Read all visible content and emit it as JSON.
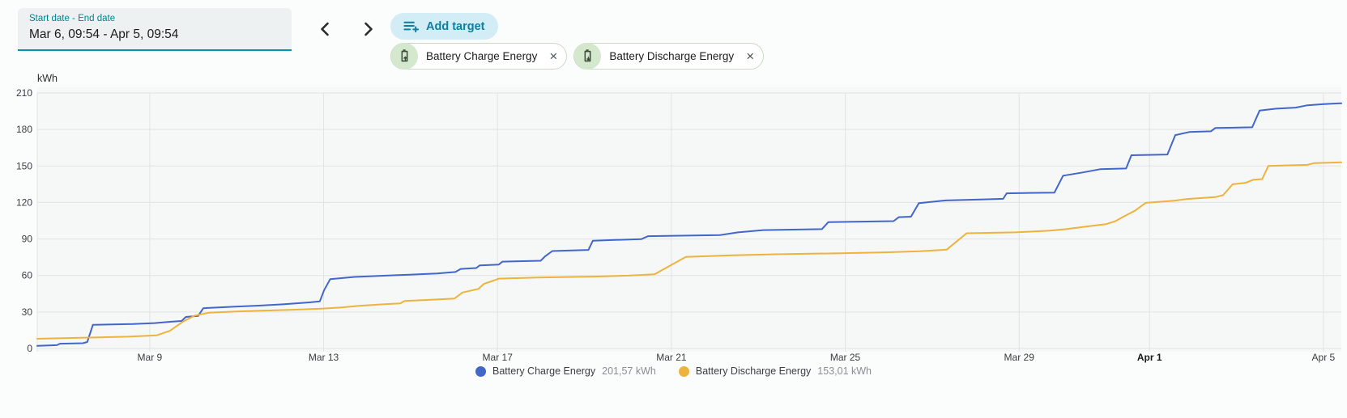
{
  "header": {
    "date_range": {
      "label": "Start date - End date",
      "value": "Mar 6, 09:54 - Apr 5, 09:54"
    },
    "add_target_label": "Add target",
    "chips": [
      {
        "label": "Battery Charge Energy",
        "icon": "battery-plus-icon",
        "close": "×"
      },
      {
        "label": "Battery Discharge Energy",
        "icon": "battery-minus-icon",
        "close": "×"
      }
    ]
  },
  "chart_data": {
    "type": "line",
    "title": "",
    "ylabel": "kWh",
    "xlabel": "",
    "ylim": [
      0,
      210
    ],
    "yticks": [
      0,
      30,
      60,
      90,
      120,
      150,
      180,
      210
    ],
    "grid": true,
    "legend_position": "bottom",
    "x_start": "Mar 6, 09:54",
    "x_end": "Apr 5, 09:54",
    "x_domain_days": 30,
    "xticks": [
      {
        "day": 2.588,
        "label": "Mar 9",
        "bold": false
      },
      {
        "day": 6.588,
        "label": "Mar 13",
        "bold": false
      },
      {
        "day": 10.588,
        "label": "Mar 17",
        "bold": false
      },
      {
        "day": 14.588,
        "label": "Mar 21",
        "bold": false
      },
      {
        "day": 18.588,
        "label": "Mar 25",
        "bold": false
      },
      {
        "day": 22.588,
        "label": "Mar 29",
        "bold": false
      },
      {
        "day": 25.588,
        "label": "Apr 1",
        "bold": true
      },
      {
        "day": 29.588,
        "label": "Apr 5",
        "bold": false
      }
    ],
    "series": [
      {
        "name": "Battery Charge Energy",
        "final_label": "201,57 kWh",
        "final_value": 201.57,
        "color": "#4266c9",
        "points": [
          [
            0,
            2.2
          ],
          [
            0.45,
            2.7
          ],
          [
            0.52,
            3.9
          ],
          [
            1.05,
            4.3
          ],
          [
            1.15,
            5.3
          ],
          [
            1.28,
            19.4
          ],
          [
            2.2,
            20.1
          ],
          [
            2.7,
            20.9
          ],
          [
            3.05,
            21.9
          ],
          [
            3.32,
            22.6
          ],
          [
            3.42,
            25.9
          ],
          [
            3.7,
            26.7
          ],
          [
            3.82,
            33.1
          ],
          [
            4.5,
            34.3
          ],
          [
            5.1,
            35.2
          ],
          [
            5.65,
            36.3
          ],
          [
            6.2,
            37.7
          ],
          [
            6.5,
            38.7
          ],
          [
            6.6,
            48
          ],
          [
            6.74,
            57
          ],
          [
            7.3,
            58.8
          ],
          [
            8.3,
            60.3
          ],
          [
            9.2,
            61.6
          ],
          [
            9.62,
            62.9
          ],
          [
            9.74,
            65.4
          ],
          [
            10.1,
            66.1
          ],
          [
            10.18,
            68.3
          ],
          [
            10.62,
            69
          ],
          [
            10.7,
            71.4
          ],
          [
            11.58,
            72.1
          ],
          [
            11.68,
            75.6
          ],
          [
            11.85,
            80.1
          ],
          [
            12.68,
            81
          ],
          [
            12.78,
            88.6
          ],
          [
            13.9,
            89.9
          ],
          [
            14.05,
            92.3
          ],
          [
            15.7,
            93.2
          ],
          [
            16.12,
            95.4
          ],
          [
            16.7,
            97.3
          ],
          [
            18.05,
            98.1
          ],
          [
            18.2,
            103.9
          ],
          [
            19.7,
            104.7
          ],
          [
            19.82,
            107.9
          ],
          [
            20.1,
            108.3
          ],
          [
            20.28,
            119.4
          ],
          [
            20.9,
            121.7
          ],
          [
            21.7,
            122.4
          ],
          [
            22.22,
            123
          ],
          [
            22.3,
            127.5
          ],
          [
            23.4,
            128.1
          ],
          [
            23.6,
            142
          ],
          [
            24.05,
            144.7
          ],
          [
            24.45,
            147.3
          ],
          [
            25.05,
            147.9
          ],
          [
            25.17,
            158.8
          ],
          [
            26.0,
            159.4
          ],
          [
            26.18,
            175.4
          ],
          [
            26.5,
            177.9
          ],
          [
            27.0,
            178.5
          ],
          [
            27.1,
            181.2
          ],
          [
            27.95,
            181.8
          ],
          [
            28.12,
            195.6
          ],
          [
            28.5,
            197.1
          ],
          [
            28.95,
            198
          ],
          [
            29.22,
            199.9
          ],
          [
            29.6,
            200.9
          ],
          [
            30,
            201.57
          ]
        ]
      },
      {
        "name": "Battery Discharge Energy",
        "final_label": "153,01 kWh",
        "final_value": 153.01,
        "color": "#edb33d",
        "points": [
          [
            0,
            8
          ],
          [
            0.9,
            8.7
          ],
          [
            2.1,
            9.7
          ],
          [
            2.75,
            10.8
          ],
          [
            3.05,
            14.5
          ],
          [
            3.35,
            22
          ],
          [
            3.62,
            27
          ],
          [
            3.95,
            29.4
          ],
          [
            4.7,
            30.6
          ],
          [
            5.8,
            31.7
          ],
          [
            6.5,
            32.6
          ],
          [
            7.0,
            33.7
          ],
          [
            7.4,
            35
          ],
          [
            7.95,
            36.3
          ],
          [
            8.35,
            37.1
          ],
          [
            8.45,
            39.1
          ],
          [
            9.2,
            40.3
          ],
          [
            9.6,
            41.1
          ],
          [
            9.78,
            46
          ],
          [
            10.15,
            49
          ],
          [
            10.28,
            53.2
          ],
          [
            10.5,
            55.8
          ],
          [
            10.62,
            57.4
          ],
          [
            11.5,
            58.3
          ],
          [
            12.8,
            59.1
          ],
          [
            13.6,
            59.9
          ],
          [
            14.2,
            61
          ],
          [
            14.55,
            68
          ],
          [
            14.92,
            75.3
          ],
          [
            16,
            76.6
          ],
          [
            17,
            77.4
          ],
          [
            18.5,
            78.3
          ],
          [
            19.5,
            79
          ],
          [
            20.3,
            79.9
          ],
          [
            20.92,
            81.2
          ],
          [
            21.1,
            86.5
          ],
          [
            21.38,
            94.7
          ],
          [
            22.5,
            95.4
          ],
          [
            23.3,
            96.8
          ],
          [
            23.65,
            98
          ],
          [
            24.05,
            99.8
          ],
          [
            24.6,
            102.3
          ],
          [
            24.8,
            104.6
          ],
          [
            25.0,
            108.6
          ],
          [
            25.25,
            113.2
          ],
          [
            25.5,
            119.7
          ],
          [
            26.15,
            121.4
          ],
          [
            26.45,
            122.9
          ],
          [
            27.1,
            124.4
          ],
          [
            27.28,
            126
          ],
          [
            27.5,
            135
          ],
          [
            27.8,
            136.2
          ],
          [
            27.97,
            138.6
          ],
          [
            28.18,
            139.2
          ],
          [
            28.32,
            150
          ],
          [
            29.22,
            150.9
          ],
          [
            29.38,
            152.4
          ],
          [
            30,
            153.01
          ]
        ]
      }
    ]
  }
}
